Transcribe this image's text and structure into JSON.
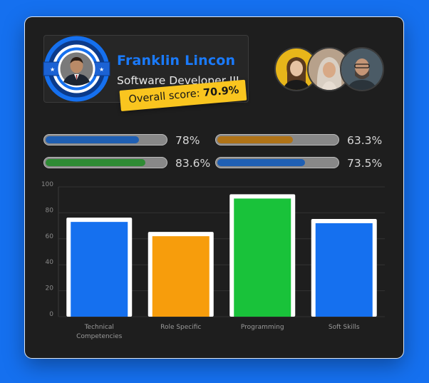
{
  "profile": {
    "name": "Franklin Lincon",
    "role": "Software Developer III",
    "score_label": "Overall score:",
    "score_value": "70.9%"
  },
  "avatars": [
    {
      "name": "candidate-avatar-1"
    },
    {
      "name": "candidate-avatar-2"
    },
    {
      "name": "candidate-avatar-3"
    }
  ],
  "skill_bars": [
    {
      "label": "78%",
      "value": 78,
      "color": "#1f5fb3"
    },
    {
      "label": "63.3%",
      "value": 63.3,
      "color": "#b07317"
    },
    {
      "label": "83.6%",
      "value": 83.6,
      "color": "#2e8b34"
    },
    {
      "label": "73.5%",
      "value": 73.5,
      "color": "#1f5fb3"
    }
  ],
  "chart_data": {
    "type": "bar",
    "categories": [
      [
        "Technical",
        "Competencies"
      ],
      [
        "Role Specific"
      ],
      [
        "Programming"
      ],
      [
        "Soft Skills"
      ]
    ],
    "values": [
      73,
      62,
      91,
      72
    ],
    "colors": [
      "#1570ef",
      "#f79d0c",
      "#19c23a",
      "#1570ef"
    ],
    "yticks": [
      "0",
      "20",
      "40",
      "60",
      "80",
      "100"
    ],
    "ylim": [
      0,
      100
    ],
    "grid": true
  }
}
